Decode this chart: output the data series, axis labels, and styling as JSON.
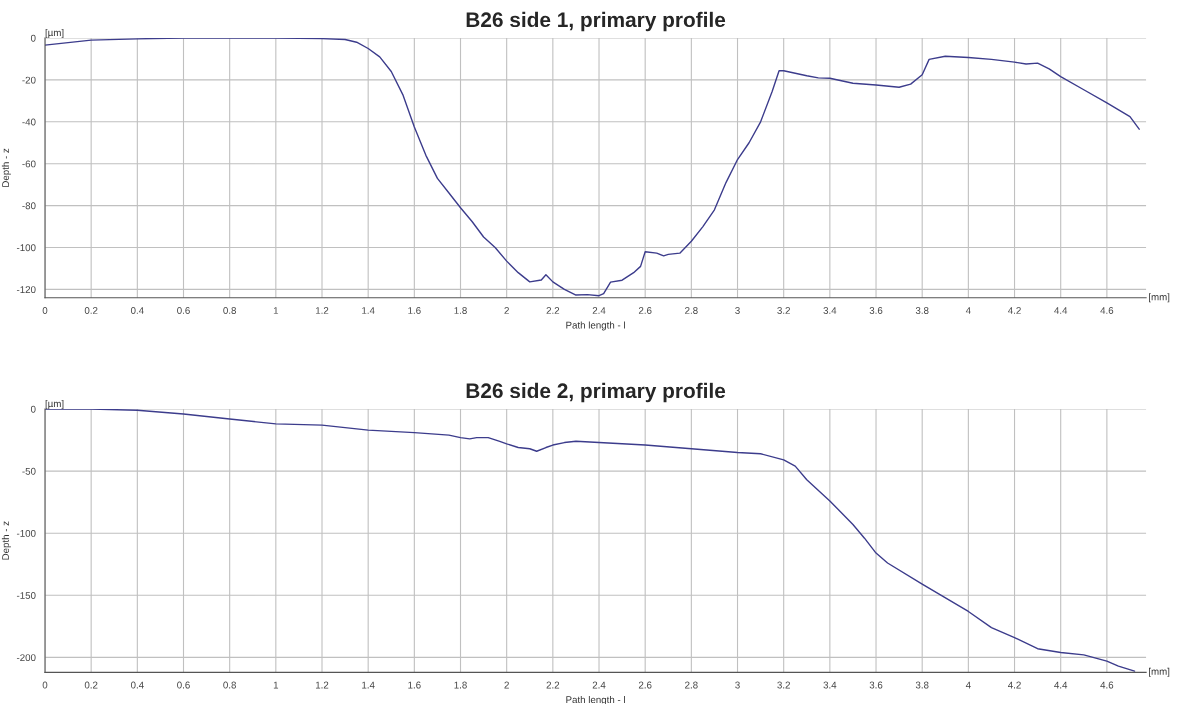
{
  "chart_data": [
    {
      "type": "line",
      "title": "B26 side 1, primary profile",
      "xlabel": "Path length - l",
      "ylabel": "Depth - z",
      "annotations": [
        "[µm]",
        "[mm]"
      ],
      "series": [
        {
          "color": "#3c3c8c",
          "x": [
            0,
            0.2,
            0.4,
            0.6,
            1.0,
            1.2,
            1.3,
            1.35,
            1.4,
            1.45,
            1.5,
            1.55,
            1.6,
            1.65,
            1.7,
            1.75,
            1.8,
            1.85,
            1.9,
            1.95,
            2.0,
            2.05,
            2.1,
            2.15,
            2.17,
            2.2,
            2.25,
            2.3,
            2.35,
            2.4,
            2.42,
            2.45,
            2.5,
            2.55,
            2.58,
            2.6,
            2.65,
            2.68,
            2.7,
            2.75,
            2.8,
            2.85,
            2.9,
            2.95,
            3.0,
            3.05,
            3.1,
            3.15,
            3.18,
            3.2,
            3.3,
            3.35,
            3.4,
            3.5,
            3.6,
            3.7,
            3.75,
            3.8,
            3.83,
            3.9,
            4.0,
            4.1,
            4.2,
            4.25,
            4.3,
            4.35,
            4.4,
            4.5,
            4.6,
            4.7,
            4.74
          ],
          "values": [
            -3.4,
            -1,
            -0.4,
            0,
            0,
            -0.3,
            -0.7,
            -2,
            -5,
            -9,
            -16,
            -27,
            -42.5,
            -56,
            -67,
            -74,
            -81,
            -87.6,
            -95,
            -100,
            -106.5,
            -112,
            -116.4,
            -115.5,
            -113,
            -116.4,
            -120,
            -122.7,
            -122.5,
            -123,
            -122,
            -116.5,
            -115.6,
            -112,
            -109,
            -102,
            -102.7,
            -104,
            -103.3,
            -102.7,
            -97,
            -90,
            -82,
            -69,
            -58,
            -50,
            -40,
            -25.5,
            -15.6,
            -15.6,
            -18,
            -19,
            -19.2,
            -21.6,
            -22.4,
            -23.5,
            -22,
            -17.5,
            -10.2,
            -8.7,
            -9.3,
            -10.2,
            -11.5,
            -12.4,
            -12,
            -14.7,
            -18.4,
            -24.7,
            -31,
            -37.5,
            -43.5
          ]
        }
      ],
      "xlim": [
        0,
        4.77
      ],
      "xticks": [
        0,
        0.2,
        0.4,
        0.6,
        0.8,
        1,
        1.2,
        1.4,
        1.6,
        1.8,
        2,
        2.2,
        2.4,
        2.6,
        2.8,
        3,
        3.2,
        3.4,
        3.6,
        3.8,
        4,
        4.2,
        4.4,
        4.6
      ],
      "ylim": [
        -124,
        0
      ],
      "yticks": [
        -120,
        -100,
        -80,
        -60,
        -40,
        -20,
        0
      ],
      "grid": true
    },
    {
      "type": "line",
      "title": "B26 side 2, primary profile",
      "xlabel": "Path length - l",
      "ylabel": "Depth - z",
      "annotations": [
        "[µm]",
        "[mm]"
      ],
      "series": [
        {
          "color": "#3c3c8c",
          "x": [
            0,
            0.2,
            0.4,
            0.6,
            0.8,
            1.0,
            1.2,
            1.4,
            1.6,
            1.75,
            1.8,
            1.84,
            1.87,
            1.92,
            1.97,
            2.0,
            2.05,
            2.1,
            2.13,
            2.17,
            2.2,
            2.25,
            2.3,
            2.4,
            2.6,
            2.8,
            3.0,
            3.1,
            3.2,
            3.25,
            3.3,
            3.4,
            3.5,
            3.55,
            3.6,
            3.65,
            3.8,
            4.0,
            4.1,
            4.2,
            4.3,
            4.4,
            4.5,
            4.6,
            4.65,
            4.72
          ],
          "values": [
            0,
            0,
            -1,
            -4,
            -8,
            -12,
            -13,
            -17,
            -19,
            -21,
            -23,
            -24,
            -23,
            -23,
            -26,
            -28,
            -31,
            -32,
            -34,
            -31,
            -29,
            -27,
            -26,
            -27,
            -29,
            -32,
            -35,
            -36,
            -41,
            -46,
            -57,
            -74,
            -93,
            -104,
            -116,
            -124,
            -141,
            -163,
            -176,
            -184,
            -193,
            -196,
            -198,
            -203,
            -207,
            -211
          ]
        }
      ],
      "xlim": [
        0,
        4.77
      ],
      "xticks": [
        0,
        0.2,
        0.4,
        0.6,
        0.8,
        1,
        1.2,
        1.4,
        1.6,
        1.8,
        2,
        2.2,
        2.4,
        2.6,
        2.8,
        3,
        3.2,
        3.4,
        3.6,
        3.8,
        4,
        4.2,
        4.4,
        4.6
      ],
      "ylim": [
        -212,
        0
      ],
      "yticks": [
        -200,
        -150,
        -100,
        -50,
        0
      ],
      "grid": true
    }
  ]
}
